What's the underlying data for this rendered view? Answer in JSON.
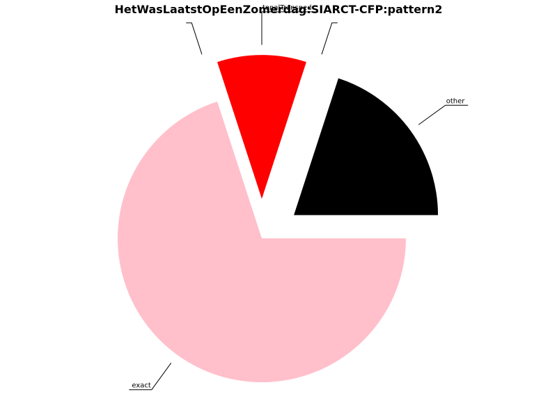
{
  "chart_data": {
    "type": "pie",
    "title": "HetWasLaatstOpEenZomerdag:SIARCT-CFP:pattern2",
    "slices": [
      {
        "label": "other",
        "value": 0.2,
        "color": "#000000",
        "explode": true
      },
      {
        "label": "",
        "value": 0.0,
        "color": "#800080",
        "explode": true
      },
      {
        "label": "tonalTransped",
        "value": 0.1,
        "color": "#ff0000",
        "explode": true
      },
      {
        "label": "",
        "value": 0.0,
        "color": "#00ff00",
        "explode": true
      },
      {
        "label": "exact",
        "value": 0.7,
        "color": "#ffc0cb",
        "explode": false
      }
    ]
  }
}
